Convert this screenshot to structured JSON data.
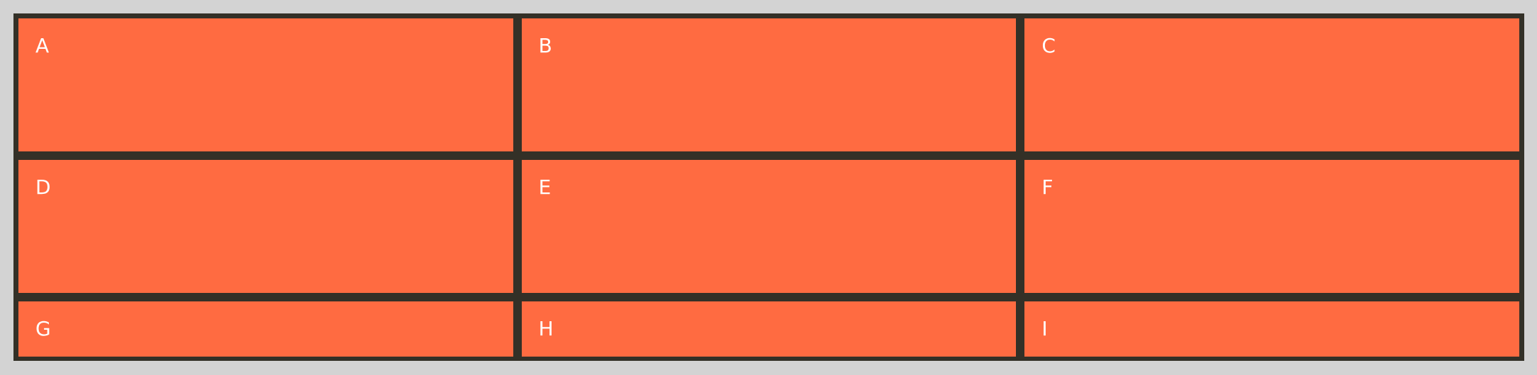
{
  "colors": {
    "page_background": "#d3d3d3",
    "grid_background": "#333027",
    "cell_background": "#ff6b41",
    "cell_text": "#ffffff"
  },
  "cells": [
    "A",
    "B",
    "C",
    "D",
    "E",
    "F",
    "G",
    "H",
    "I"
  ]
}
